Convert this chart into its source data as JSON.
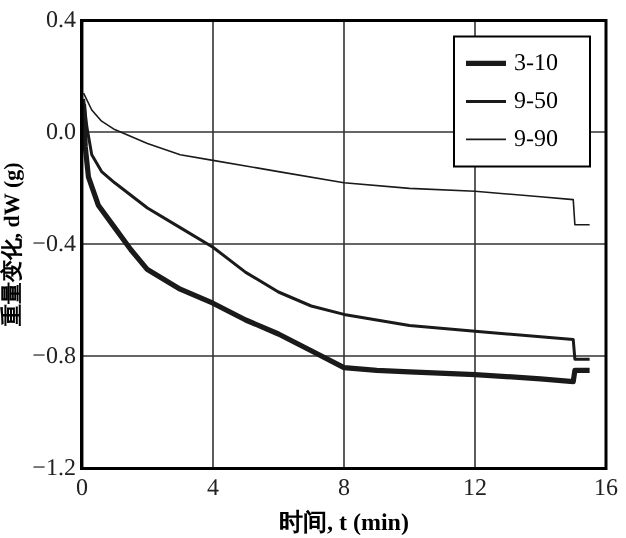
{
  "chart_data": {
    "type": "line",
    "xlabel": "时间, t (min)",
    "ylabel": "重量变化, dW (g)",
    "xlim": [
      0,
      16
    ],
    "xticks": [
      0,
      4,
      8,
      12,
      16
    ],
    "ylim": [
      -1.2,
      0.4
    ],
    "yticks": [
      {
        "value": -1.2,
        "label": "−1.2"
      },
      {
        "value": -0.8,
        "label": "−0.8"
      },
      {
        "value": -0.4,
        "label": "−0.4"
      },
      {
        "value": 0,
        "label": "0.0"
      },
      {
        "value": 0.4,
        "label": "0.4"
      }
    ],
    "grid": true,
    "legend": "top right",
    "marker": "none",
    "line_style": "solid",
    "series": [
      {
        "name": "3-10",
        "color": "#1a1a1a",
        "x": [
          0.05,
          0.1,
          0.2,
          0.5,
          1,
          1.5,
          2,
          3,
          4,
          5,
          6,
          7,
          8,
          9,
          10,
          12,
          14,
          15,
          15.05,
          15.5
        ],
        "values": [
          0.1,
          -0.05,
          -0.16,
          -0.26,
          -0.34,
          -0.42,
          -0.49,
          -0.56,
          -0.61,
          -0.67,
          -0.72,
          -0.78,
          -0.84,
          -0.85,
          -0.855,
          -0.865,
          -0.88,
          -0.89,
          -0.85,
          -0.85
        ]
      },
      {
        "name": "9-50",
        "color": "#1a1a1a",
        "x": [
          0.05,
          0.15,
          0.3,
          0.6,
          1,
          2,
          3,
          4,
          5,
          6,
          7,
          8,
          10,
          12,
          14,
          15,
          15.05,
          15.5
        ],
        "values": [
          0.12,
          0.02,
          -0.08,
          -0.14,
          -0.18,
          -0.27,
          -0.34,
          -0.41,
          -0.5,
          -0.57,
          -0.62,
          -0.65,
          -0.69,
          -0.71,
          -0.73,
          -0.74,
          -0.81,
          -0.81
        ]
      },
      {
        "name": "9-90",
        "color": "#1a1a1a",
        "x": [
          0.05,
          0.3,
          0.6,
          1,
          2,
          3,
          4,
          6,
          8,
          10,
          12,
          14,
          15,
          15.05,
          15.5
        ],
        "values": [
          0.14,
          0.08,
          0.04,
          0.01,
          -0.04,
          -0.08,
          -0.1,
          -0.14,
          -0.18,
          -0.2,
          -0.21,
          -0.23,
          -0.24,
          -0.33,
          -0.33
        ]
      }
    ]
  }
}
